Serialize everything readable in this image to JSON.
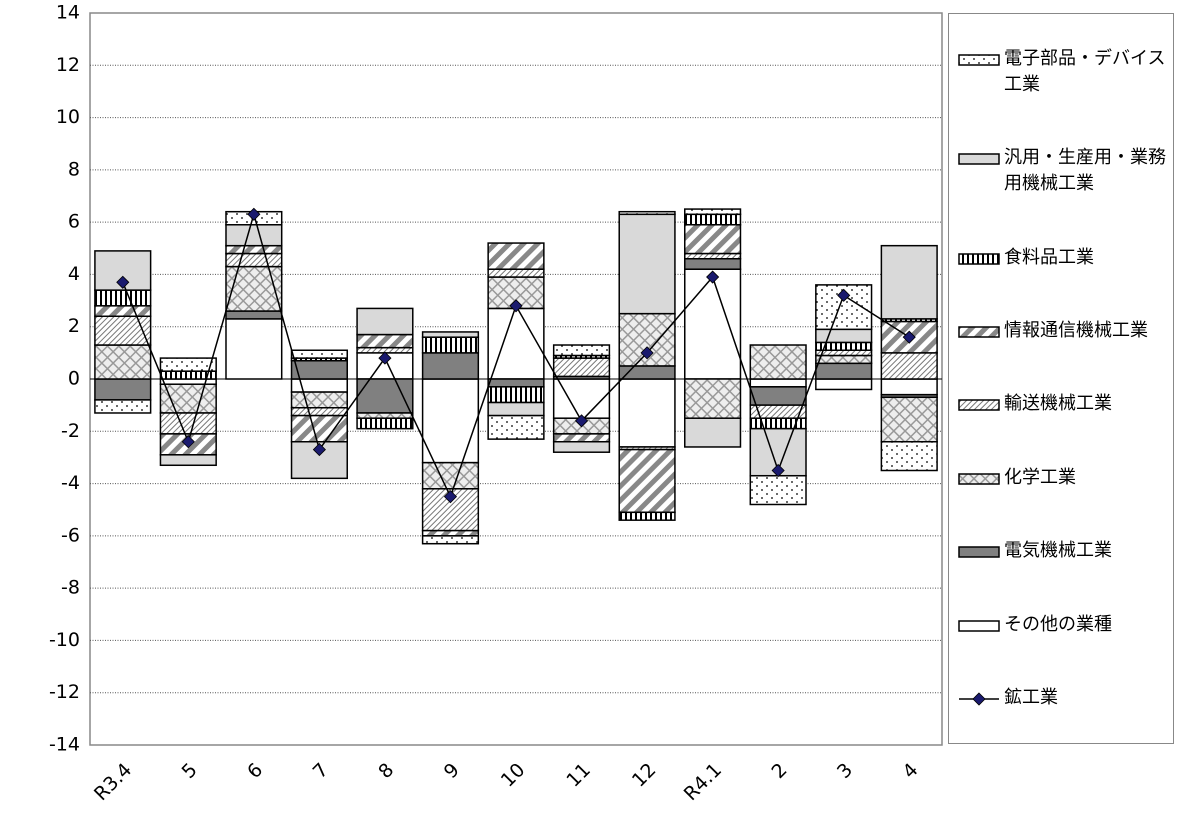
{
  "chart_data": {
    "type": "bar",
    "stacked": true,
    "categories": [
      "R3.4",
      "5",
      "6",
      "7",
      "8",
      "9",
      "10",
      "11",
      "12",
      "R4.1",
      "2",
      "3",
      "4"
    ],
    "ylim": [
      -14,
      14
    ],
    "yticks": [
      -14,
      -12,
      -10,
      -8,
      -6,
      -4,
      -2,
      0,
      2,
      4,
      6,
      8,
      10,
      12,
      14
    ],
    "grid": true,
    "legend": "right",
    "series": [
      {
        "name": "電子部品・デバイス工業",
        "pattern": "dots",
        "values": [
          -0.5,
          0.5,
          0.5,
          0.3,
          0,
          -0.3,
          -0.9,
          0.4,
          0.1,
          0.2,
          -1.1,
          1.7,
          -1.1
        ]
      },
      {
        "name": "汎用・生産用・業務用機械工業",
        "pattern": "solid-light",
        "values": [
          1.5,
          -0.4,
          0.8,
          -1.4,
          1.0,
          0.2,
          -0.5,
          -0.4,
          3.8,
          -1.1,
          -1.8,
          0.5,
          2.8
        ]
      },
      {
        "name": "食料品工業",
        "pattern": "vstripes",
        "values": [
          0.6,
          0.3,
          0,
          0.1,
          -0.4,
          0.6,
          -0.6,
          0.1,
          -0.3,
          0.4,
          -0.4,
          0.3,
          0.1
        ]
      },
      {
        "name": "情報通信機械工業",
        "pattern": "heavy-diag",
        "values": [
          0.4,
          -0.8,
          0.3,
          -1.0,
          0.5,
          -0.2,
          1.0,
          -0.3,
          -2.4,
          1.1,
          0,
          0,
          1.2
        ]
      },
      {
        "name": "輸送機械工業",
        "pattern": "light-diag",
        "values": [
          1.1,
          -0.8,
          0.5,
          -0.3,
          0.2,
          -1.6,
          0.3,
          0.7,
          -0.1,
          0.2,
          -0.5,
          0.2,
          1.0
        ]
      },
      {
        "name": "化学工業",
        "pattern": "cross",
        "values": [
          1.3,
          -1.1,
          1.7,
          -0.6,
          -0.2,
          -1.0,
          1.2,
          -0.6,
          2.0,
          -1.5,
          1.3,
          0.3,
          -1.7
        ]
      },
      {
        "name": "電気機械工業",
        "pattern": "solid-dark",
        "values": [
          -0.8,
          0,
          0.3,
          0.7,
          -1.3,
          1.0,
          -0.3,
          0.1,
          0.5,
          0.4,
          -0.7,
          0.6,
          -0.1
        ]
      },
      {
        "name": "その他の業種",
        "pattern": "white",
        "values": [
          0,
          -0.2,
          2.3,
          -0.5,
          1.0,
          -3.2,
          2.7,
          -1.5,
          -2.6,
          4.2,
          -0.3,
          -0.4,
          -0.6
        ]
      },
      {
        "name": "鉱工業",
        "type": "line",
        "color": "#1a1a6e",
        "values": [
          3.7,
          -2.4,
          6.3,
          -2.7,
          0.8,
          -4.5,
          2.8,
          -1.6,
          1.0,
          3.9,
          -3.5,
          3.2,
          1.6
        ]
      }
    ]
  }
}
